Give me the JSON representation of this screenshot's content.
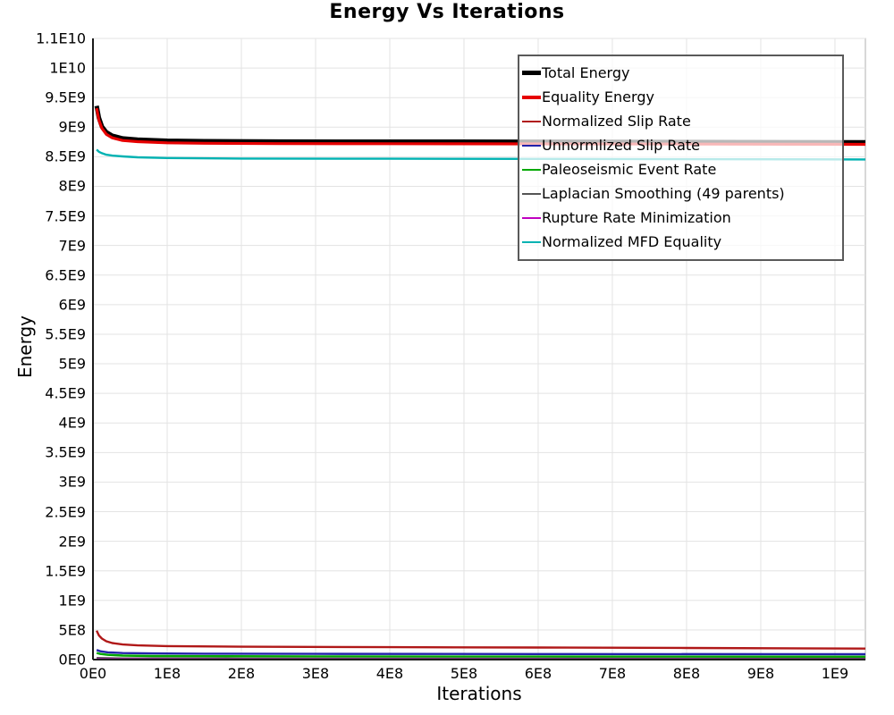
{
  "chart_data": {
    "type": "line",
    "title": "Energy Vs Iterations",
    "xlabel": "Iterations",
    "ylabel": "Energy",
    "grid": true,
    "legend_position": "top-right-inside",
    "x_axis": {
      "tick_labels": [
        "0E0",
        "1E8",
        "2E8",
        "3E8",
        "4E8",
        "5E8",
        "6E8",
        "7E8",
        "8E8",
        "9E8",
        "1E9"
      ],
      "tick_values": [
        0,
        100000000.0,
        200000000.0,
        300000000.0,
        400000000.0,
        500000000.0,
        600000000.0,
        700000000.0,
        800000000.0,
        900000000.0,
        1000000000.0
      ],
      "max": 1041000000.0
    },
    "y_axis": {
      "tick_labels_bottom_to_top": [
        "0E0",
        "5E8",
        "1E9",
        "1.5E9",
        "2E9",
        "2.5E9",
        "3E9",
        "3.5E9",
        "4E9",
        "4.5E9",
        "5E9",
        "5.5E9",
        "6E9",
        "6.5E9",
        "7E9",
        "7.5E9",
        "8E9",
        "8.5E9",
        "9E9",
        "9.5E9",
        "1E10",
        "1.1E10"
      ],
      "step_value": 500000000.0
    },
    "colors": {
      "grid": "#e3e3e3",
      "plot_border": "#b0b0b0",
      "axis": "#1a1a1a"
    },
    "series": [
      {
        "name": "Total Energy",
        "color": "#000000",
        "width": 5,
        "points": [
          [
            5000000.0,
            9360000000.0
          ],
          [
            8000000.0,
            9160000000.0
          ],
          [
            12000000.0,
            9010000000.0
          ],
          [
            18000000.0,
            8915000000.0
          ],
          [
            26000000.0,
            8855000000.0
          ],
          [
            40000000.0,
            8810000000.0
          ],
          [
            60000000.0,
            8790000000.0
          ],
          [
            100000000.0,
            8770000000.0
          ],
          [
            150000000.0,
            8763000000.0
          ],
          [
            250000000.0,
            8757000000.0
          ],
          [
            400000000.0,
            8755000000.0
          ],
          [
            600000000.0,
            8753000000.0
          ],
          [
            800000000.0,
            8749000000.0
          ],
          [
            1041000000.0,
            8745000000.0
          ]
        ]
      },
      {
        "name": "Equality Energy",
        "color": "#e60000",
        "width": 3.2,
        "points": [
          [
            5000000.0,
            9320000000.0
          ],
          [
            8000000.0,
            9120000000.0
          ],
          [
            12000000.0,
            8980000000.0
          ],
          [
            18000000.0,
            8880000000.0
          ],
          [
            26000000.0,
            8820000000.0
          ],
          [
            40000000.0,
            8775000000.0
          ],
          [
            60000000.0,
            8755000000.0
          ],
          [
            100000000.0,
            8735000000.0
          ],
          [
            150000000.0,
            8728000000.0
          ],
          [
            250000000.0,
            8722000000.0
          ],
          [
            400000000.0,
            8720000000.0
          ],
          [
            600000000.0,
            8718000000.0
          ],
          [
            800000000.0,
            8714000000.0
          ],
          [
            1041000000.0,
            8710000000.0
          ]
        ]
      },
      {
        "name": "Normalized Slip Rate",
        "color": "#b01818",
        "width": 2.4,
        "points": [
          [
            5000000.0,
            490000000.0
          ],
          [
            8000000.0,
            410000000.0
          ],
          [
            12000000.0,
            355000000.0
          ],
          [
            18000000.0,
            310000000.0
          ],
          [
            26000000.0,
            280000000.0
          ],
          [
            40000000.0,
            255000000.0
          ],
          [
            60000000.0,
            240000000.0
          ],
          [
            100000000.0,
            228000000.0
          ],
          [
            200000000.0,
            218000000.0
          ],
          [
            400000000.0,
            210000000.0
          ],
          [
            600000000.0,
            204000000.0
          ],
          [
            800000000.0,
            196000000.0
          ],
          [
            1041000000.0,
            186000000.0
          ]
        ]
      },
      {
        "name": "Unnormlized Slip Rate",
        "color": "#2222aa",
        "width": 2.4,
        "points": [
          [
            5000000.0,
            162000000.0
          ],
          [
            10000000.0,
            140000000.0
          ],
          [
            20000000.0,
            122000000.0
          ],
          [
            40000000.0,
            110000000.0
          ],
          [
            80000000.0,
            104000000.0
          ],
          [
            150000000.0,
            100000000.0
          ],
          [
            300000000.0,
            97000000.0
          ],
          [
            600000000.0,
            94000000.0
          ],
          [
            1041000000.0,
            90000000.0
          ]
        ]
      },
      {
        "name": "Paleoseismic Event Rate",
        "color": "#00a800",
        "width": 2.4,
        "points": [
          [
            5000000.0,
            112000000.0
          ],
          [
            10000000.0,
            95000000.0
          ],
          [
            20000000.0,
            80000000.0
          ],
          [
            40000000.0,
            68000000.0
          ],
          [
            80000000.0,
            61000000.0
          ],
          [
            150000000.0,
            57000000.0
          ],
          [
            300000000.0,
            54000000.0
          ],
          [
            600000000.0,
            51000000.0
          ],
          [
            1041000000.0,
            48000000.0
          ]
        ]
      },
      {
        "name": "Laplacian Smoothing (49 parents)",
        "color": "#555555",
        "width": 2,
        "points": [
          [
            5000000.0,
            30000000.0
          ],
          [
            40000000.0,
            22000000.0
          ],
          [
            200000000.0,
            19000000.0
          ],
          [
            1041000000.0,
            17000000.0
          ]
        ]
      },
      {
        "name": "Rupture Rate Minimization",
        "color": "#c000c0",
        "width": 2,
        "points": [
          [
            5000000.0,
            7000000.0
          ],
          [
            200000000.0,
            6000000.0
          ],
          [
            1041000000.0,
            5000000.0
          ]
        ]
      },
      {
        "name": "Normalized MFD Equality",
        "color": "#00b2b2",
        "width": 2.4,
        "points": [
          [
            5000000.0,
            8620000000.0
          ],
          [
            8000000.0,
            8585000000.0
          ],
          [
            12000000.0,
            8560000000.0
          ],
          [
            18000000.0,
            8535000000.0
          ],
          [
            26000000.0,
            8520000000.0
          ],
          [
            40000000.0,
            8505000000.0
          ],
          [
            60000000.0,
            8490000000.0
          ],
          [
            100000000.0,
            8478000000.0
          ],
          [
            200000000.0,
            8470000000.0
          ],
          [
            400000000.0,
            8466000000.0
          ],
          [
            700000000.0,
            8462000000.0
          ],
          [
            1041000000.0,
            8455000000.0
          ]
        ]
      }
    ],
    "legend": {
      "items": [
        {
          "label": "Total Energy",
          "color": "#000000",
          "thickness": 5
        },
        {
          "label": "Equality Energy",
          "color": "#e60000",
          "thickness": 4
        },
        {
          "label": "Normalized Slip Rate",
          "color": "#b01818",
          "thickness": 2
        },
        {
          "label": "Unnormlized Slip Rate",
          "color": "#2222aa",
          "thickness": 2
        },
        {
          "label": "Paleoseismic Event Rate",
          "color": "#00a800",
          "thickness": 2
        },
        {
          "label": "Laplacian Smoothing (49 parents)",
          "color": "#555555",
          "thickness": 2
        },
        {
          "label": "Rupture Rate Minimization",
          "color": "#c000c0",
          "thickness": 2
        },
        {
          "label": "Normalized MFD Equality",
          "color": "#00b2b2",
          "thickness": 2
        }
      ]
    }
  }
}
